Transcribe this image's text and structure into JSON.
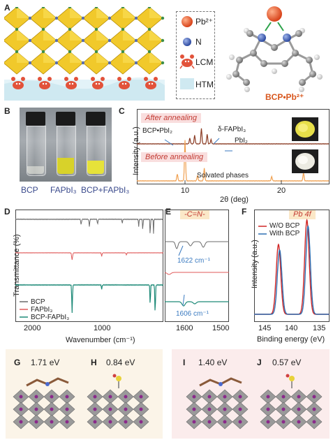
{
  "panels": {
    "A": {
      "label": "A",
      "legend": [
        {
          "symbol": "pb-sphere",
          "label": "Pb²⁺"
        },
        {
          "symbol": "n-sphere",
          "label": "N"
        },
        {
          "symbol": "crab-icon",
          "label": "LCM"
        },
        {
          "symbol": "htm-block",
          "label": "HTM"
        }
      ],
      "molecule_label": "BCP•Pb²⁺",
      "colors": {
        "pb": "#e4542a",
        "n": "#3f5fb4",
        "crab": "#e2523a",
        "octahedron": "#f0c419",
        "htm": "#cfe9f1",
        "molecule_label": "#d8571e"
      }
    },
    "B": {
      "label": "B",
      "vial_labels": [
        "BCP",
        "FAPbI₃",
        "BCP+FAPbI₃"
      ],
      "label_color": "#3a4a8c"
    },
    "C": {
      "label": "C",
      "after_label": "After annealing",
      "before_label": "Before annealing",
      "annotations": {
        "bcp_pbi2": "BCP•PbI₂",
        "delta_fapbi3": "δ-FAPbI₃",
        "pbi2": "PbI₂",
        "solvated": "Solvated phases"
      },
      "ylabel": "Intensity (a.u.)",
      "xlabel": "2θ (deg)",
      "xticks": [
        "10",
        "20"
      ],
      "colors": {
        "after": "#8a3a22",
        "before": "#f0a050"
      }
    },
    "D": {
      "label": "D",
      "ylabel": "Transmittance (%)",
      "xlabel": "Wavenumber (cm⁻¹)",
      "xticks": [
        "2000",
        "1000"
      ],
      "legend": [
        {
          "name": "BCP",
          "color": "#6b6b6b"
        },
        {
          "name": "FAPbI₃",
          "color": "#e05a5a"
        },
        {
          "name": "BCP-FAPbI₃",
          "color": "#1e8a78"
        }
      ]
    },
    "E": {
      "label": "E",
      "tag": "-C=N-",
      "ann_top": "1622 cm⁻¹",
      "ann_bottom": "1606 cm⁻¹",
      "xticks": [
        "1600",
        "1500"
      ]
    },
    "F": {
      "label": "F",
      "tag": "Pb 4f",
      "ylabel": "Intensity (a.u.)",
      "xlabel": "Binding energy (eV)",
      "xticks": [
        "145",
        "140",
        "135"
      ],
      "legend": [
        {
          "name": "W/O BCP",
          "color": "#d02525"
        },
        {
          "name": "With BCP",
          "color": "#2e6fb3"
        }
      ]
    },
    "G": {
      "label": "G",
      "value": "1.71 eV"
    },
    "H": {
      "label": "H",
      "value": "0.84 eV"
    },
    "I": {
      "label": "I",
      "value": "1.40 eV"
    },
    "J": {
      "label": "J",
      "value": "0.57 eV"
    }
  },
  "chart_data": [
    {
      "type": "line",
      "panel": "C",
      "xlabel": "2θ (deg)",
      "ylabel": "Intensity (a.u.)",
      "xlim": [
        5,
        25
      ],
      "series": [
        {
          "name": "After annealing",
          "x": [
            5,
            10.5,
            11.0,
            11.7,
            12.3,
            12.7,
            25
          ],
          "peaks": [
            10.5,
            11.0,
            11.7,
            12.3,
            12.7
          ]
        },
        {
          "name": "Before annealing",
          "x": [
            5,
            9.2,
            10.0,
            11.3,
            12.0,
            19.0,
            22.3,
            25
          ],
          "peaks": [
            9.2,
            10.0,
            11.3,
            12.0,
            19.0,
            22.3
          ]
        }
      ]
    },
    {
      "type": "line",
      "panel": "D",
      "xlabel": "Wavenumber (cm⁻¹)",
      "ylabel": "Transmittance (%)",
      "xlim": [
        2400,
        600
      ],
      "series": [
        {
          "name": "BCP"
        },
        {
          "name": "FAPbI₃"
        },
        {
          "name": "BCP-FAPbI₃"
        }
      ]
    },
    {
      "type": "line",
      "panel": "E",
      "xlim": [
        1650,
        1500
      ],
      "annotations": [
        1622,
        1606
      ]
    },
    {
      "type": "line",
      "panel": "F",
      "xlabel": "Binding energy (eV)",
      "ylabel": "Intensity (a.u.)",
      "xlim": [
        147,
        134
      ],
      "series": [
        {
          "name": "W/O BCP",
          "peaks": [
            142.8,
            137.9
          ]
        },
        {
          "name": "With BCP",
          "peaks": [
            142.6,
            137.7
          ]
        }
      ]
    }
  ]
}
